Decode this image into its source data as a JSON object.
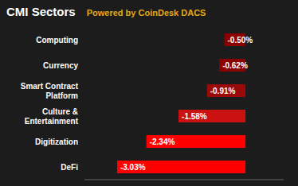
{
  "chart_data": {
    "type": "bar",
    "title": "CMI Sectors",
    "subtitle": "Powered by CoinDesk DACS",
    "orientation": "horizontal",
    "categories": [
      "Computing",
      "Currency",
      "Smart Contract\nPlatform",
      "Culture &\nEntertainment",
      "Digitization",
      "DeFi"
    ],
    "values": [
      -0.5,
      -0.62,
      -0.91,
      -1.58,
      -2.34,
      -3.03
    ],
    "value_labels": [
      "-0.50%",
      "-0.62%",
      "-0.91%",
      "-1.58%",
      "-2.34%",
      "-3.03%"
    ],
    "colors": [
      "#8b0000",
      "#8b0000",
      "#9a0a0a",
      "#cc1111",
      "#ff0000",
      "#ff0000"
    ],
    "xlim": [
      -3.8,
      0.9
    ],
    "tick_labels": "y",
    "data_labels": true,
    "grid": false
  }
}
